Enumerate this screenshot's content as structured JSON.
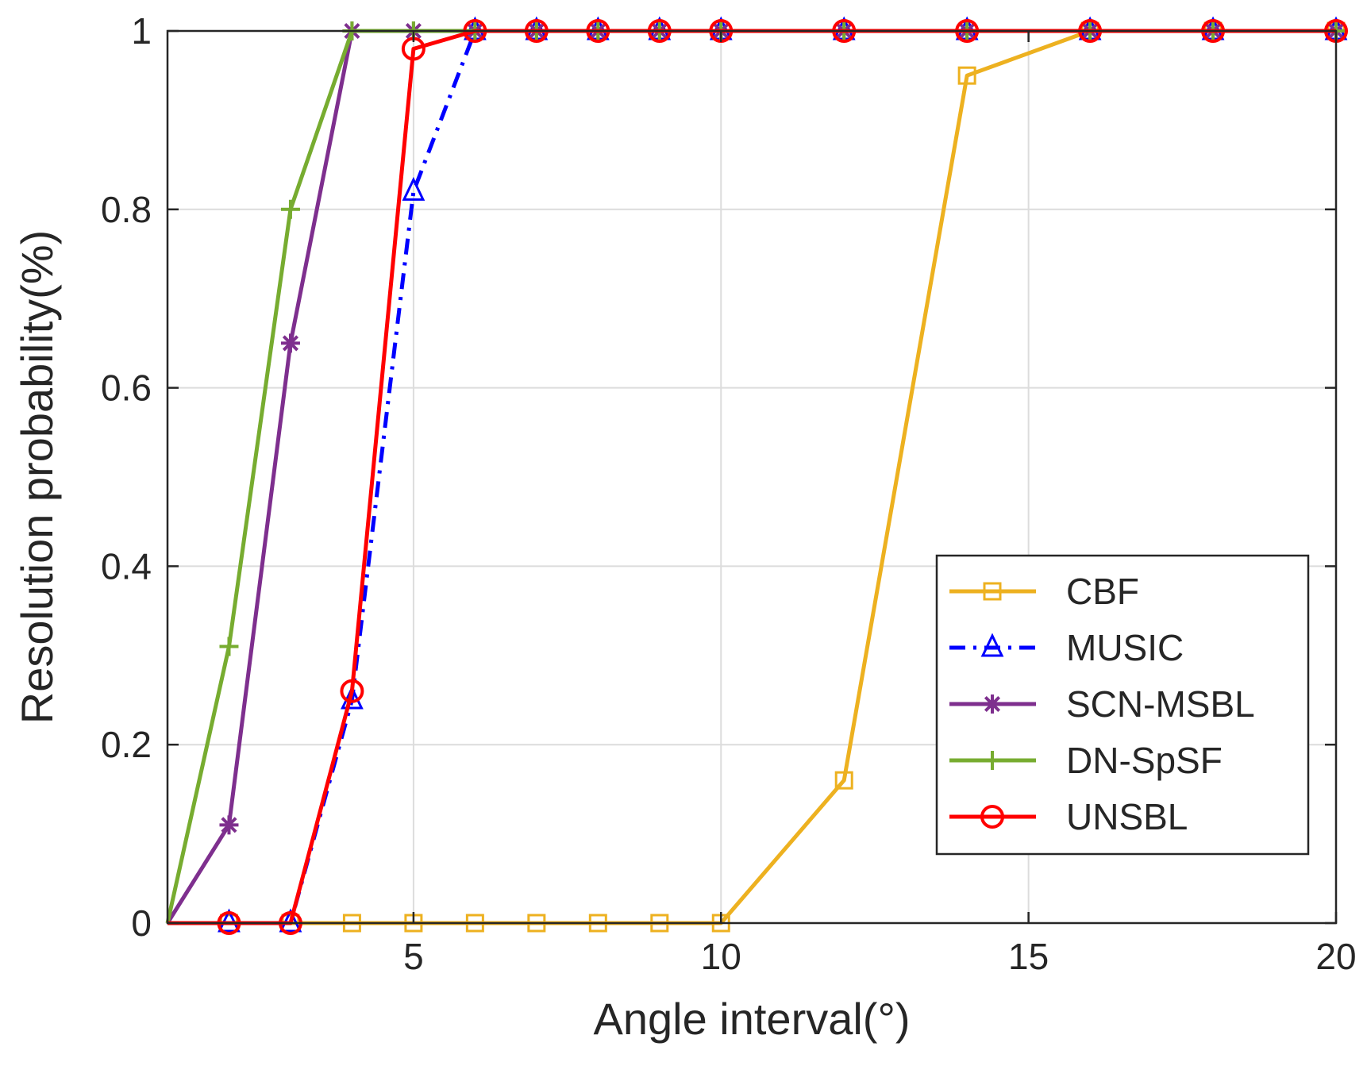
{
  "chart_data": {
    "type": "line",
    "title": "",
    "xlabel": "Angle interval(°)",
    "ylabel": "Resolution probability(%)",
    "xlim": [
      1,
      20
    ],
    "ylim": [
      0,
      1
    ],
    "xticks": [
      5,
      10,
      15,
      20
    ],
    "yticks": [
      0,
      0.2,
      0.4,
      0.6,
      0.8,
      1
    ],
    "xtick_labels": [
      "5",
      "10",
      "15",
      "20"
    ],
    "ytick_labels": [
      "0",
      "0.2",
      "0.4",
      "0.6",
      "0.8",
      "1"
    ],
    "grid": true,
    "legend_position": "lower-right",
    "x": [
      1,
      2,
      3,
      4,
      5,
      6,
      7,
      8,
      9,
      10,
      12,
      14,
      16,
      18,
      20
    ],
    "series": [
      {
        "name": "CBF",
        "color": "#EDB120",
        "marker": "square",
        "line": "solid",
        "values": [
          0,
          0,
          0,
          0,
          0,
          0,
          0,
          0,
          0,
          0,
          0.16,
          0.95,
          1,
          1,
          1
        ]
      },
      {
        "name": "MUSIC",
        "color": "#0000FF",
        "marker": "triangle",
        "line": "dashdot",
        "values": [
          0,
          0,
          0,
          0.25,
          0.82,
          1,
          1,
          1,
          1,
          1,
          1,
          1,
          1,
          1,
          1
        ]
      },
      {
        "name": "SCN-MSBL",
        "color": "#7E2F8E",
        "marker": "asterisk",
        "line": "solid",
        "values": [
          0,
          0.11,
          0.65,
          1,
          1,
          1,
          1,
          1,
          1,
          1,
          1,
          1,
          1,
          1,
          1
        ]
      },
      {
        "name": "DN-SpSF",
        "color": "#77AC30",
        "marker": "plus",
        "line": "solid",
        "values": [
          0,
          0.31,
          0.8,
          1,
          1,
          1,
          1,
          1,
          1,
          1,
          1,
          1,
          1,
          1,
          1
        ]
      },
      {
        "name": "UNSBL",
        "color": "#FF0000",
        "marker": "circle",
        "line": "solid",
        "values": [
          0,
          0,
          0,
          0.26,
          0.98,
          1,
          1,
          1,
          1,
          1,
          1,
          1,
          1,
          1,
          1
        ]
      }
    ]
  }
}
